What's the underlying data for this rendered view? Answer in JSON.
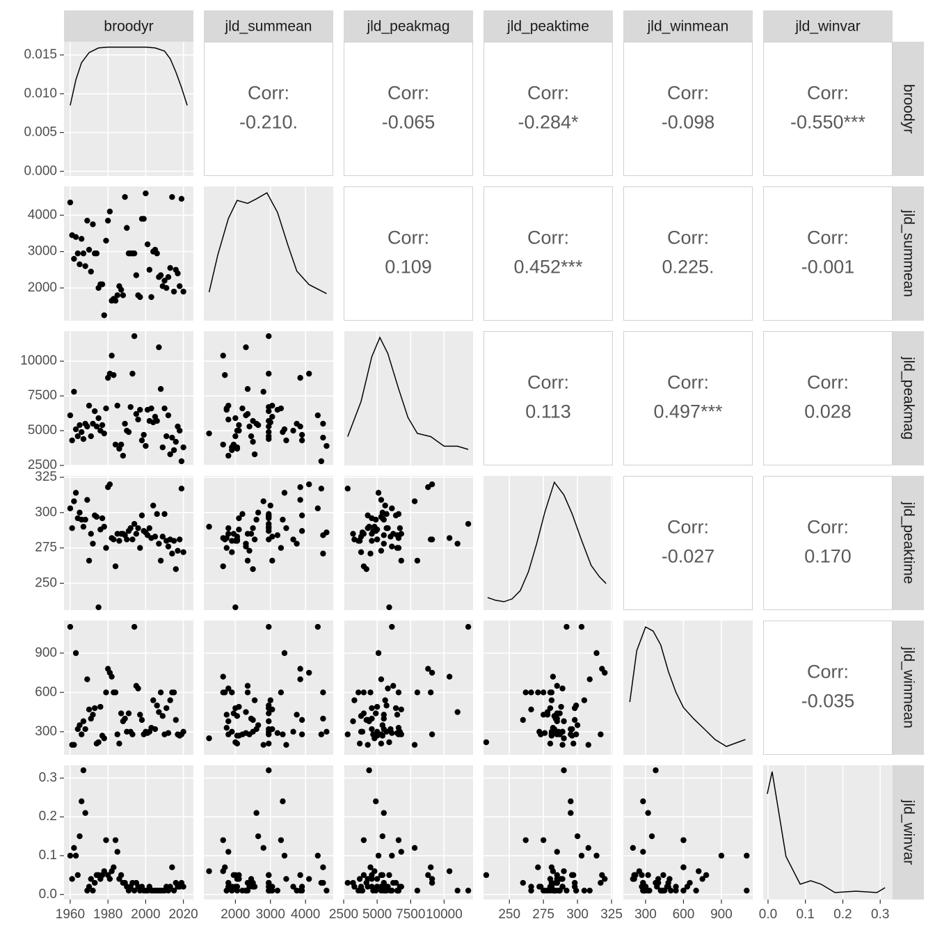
{
  "chart_data": {
    "type": "scatter_matrix",
    "correlation_label": "Corr:",
    "correlations": [
      [
        "-0.210.",
        "-0.065",
        "-0.284*",
        "-0.098",
        "-0.550***"
      ],
      [
        "0.109",
        "0.452***",
        "0.225.",
        "-0.001"
      ],
      [
        "0.113",
        "0.497***",
        "0.028"
      ],
      [
        "-0.027",
        "0.170"
      ],
      [
        "-0.035"
      ]
    ],
    "variables": [
      {
        "name": "broodyr",
        "lim": [
          1956.7,
          2025.3
        ],
        "ticks": [
          1960,
          1980,
          2000,
          2020
        ],
        "values": [
          1960,
          1961,
          1962,
          1963,
          1964,
          1965,
          1966,
          1967,
          1968,
          1969,
          1970,
          1971,
          1972,
          1973,
          1974,
          1975,
          1976,
          1977,
          1978,
          1979,
          1980,
          1981,
          1982,
          1983,
          1984,
          1985,
          1986,
          1987,
          1988,
          1989,
          1990,
          1991,
          1992,
          1993,
          1994,
          1995,
          1996,
          1997,
          1998,
          1999,
          2000,
          2001,
          2002,
          2003,
          2004,
          2005,
          2006,
          2007,
          2008,
          2009,
          2010,
          2011,
          2012,
          2013,
          2014,
          2015,
          2016,
          2017,
          2018,
          2019,
          2020
        ],
        "density": {
          "x": [
            1960,
            1963,
            1966,
            1970,
            1975,
            1980,
            1990,
            2000,
            2005,
            2010,
            2013,
            2016,
            2019,
            2022
          ],
          "y": [
            0.0085,
            0.0118,
            0.014,
            0.0153,
            0.0159,
            0.016,
            0.016,
            0.016,
            0.0159,
            0.0155,
            0.0145,
            0.0128,
            0.0108,
            0.0085
          ],
          "ylim": [
            -0.0006,
            0.0167
          ],
          "yticks": [
            {
              "value": 0,
              "label": "0.000"
            },
            0.005,
            {
              "value": 0.01,
              "label": "0.010"
            },
            0.015
          ]
        }
      },
      {
        "name": "jld_summean",
        "lim": [
          1100,
          4790
        ],
        "ticks": [
          2000,
          3000,
          4000
        ],
        "values": [
          4350,
          3450,
          2800,
          3400,
          2950,
          2650,
          3350,
          2950,
          2600,
          3850,
          3050,
          2450,
          3750,
          2950,
          2950,
          2000,
          2100,
          2100,
          1250,
          3300,
          3850,
          4100,
          1650,
          1700,
          1650,
          1800,
          2050,
          1950,
          1800,
          4500,
          3650,
          2950,
          2950,
          2950,
          2950,
          2350,
          1800,
          1750,
          3900,
          3900,
          4600,
          3200,
          2500,
          1750,
          3000,
          3050,
          2950,
          2300,
          2350,
          2050,
          2200,
          2000,
          2300,
          2550,
          4500,
          1900,
          2500,
          2400,
          2050,
          4450,
          1900
        ],
        "density": {
          "x": [
            1250,
            1500,
            1800,
            2050,
            2350,
            2600,
            2900,
            3200,
            3500,
            3750,
            4100,
            4600
          ],
          "y": [
            9.5e-05,
            0.00022,
            0.00034,
            0.0004,
            0.00039,
            0.000405,
            0.000425,
            0.00036,
            0.00025,
            0.000165,
            0.00012,
            9e-05
          ]
        }
      },
      {
        "name": "jld_peakmag",
        "lim": [
          2500,
          12160
        ],
        "ticks": [
          2500,
          5000,
          7500,
          10000
        ],
        "values": [
          6100,
          4300,
          7800,
          5100,
          4600,
          5400,
          4900,
          4400,
          5500,
          5300,
          6800,
          4600,
          5500,
          6400,
          5300,
          5900,
          5000,
          5400,
          4800,
          6600,
          8800,
          9100,
          10400,
          9000,
          4000,
          6800,
          3700,
          4000,
          3200,
          5500,
          5000,
          4900,
          6700,
          9100,
          11800,
          6200,
          5800,
          6500,
          4300,
          4700,
          3900,
          6500,
          5700,
          6600,
          5600,
          6000,
          5700,
          11000,
          8000,
          3800,
          6600,
          4600,
          6100,
          3300,
          4500,
          3600,
          4200,
          5300,
          5000,
          2800,
          3800
        ],
        "density": {
          "x": [
            2800,
            3800,
            4600,
            5200,
            5800,
            6600,
            7300,
            8000,
            9000,
            10000,
            11000,
            11800
          ],
          "y": [
            4.5e-05,
            0.0001,
            0.00017,
            0.0002,
            0.000175,
            0.00012,
            7.5e-05,
            5e-05,
            4.5e-05,
            3e-05,
            3e-05,
            2.5e-05
          ]
        }
      },
      {
        "name": "jld_peaktime",
        "lim": [
          231,
          326
        ],
        "ticks": [
          250,
          275,
          300,
          325
        ],
        "values": [
          303,
          289,
          308,
          314,
          296,
          300,
          295,
          290,
          295,
          309,
          266,
          285,
          278,
          298,
          297,
          233,
          288,
          296,
          290,
          275,
          318,
          320,
          282,
          281,
          262,
          285,
          280,
          285,
          285,
          284,
          281,
          287,
          289,
          281,
          292,
          285,
          289,
          275,
          298,
          287,
          286,
          284,
          289,
          282,
          305,
          283,
          299,
          278,
          266,
          283,
          299,
          280,
          276,
          281,
          271,
          280,
          260,
          273,
          281,
          317,
          272
        ],
        "density": {
          "x": [
            234,
            240,
            246,
            252,
            258,
            264,
            270,
            276,
            283,
            290,
            296,
            303,
            310,
            316,
            321
          ],
          "y": [
            0.0018,
            0.0014,
            0.0012,
            0.0016,
            0.0028,
            0.0055,
            0.0095,
            0.014,
            0.0183,
            0.0165,
            0.0138,
            0.01,
            0.0064,
            0.0048,
            0.0038
          ]
        }
      },
      {
        "name": "jld_winmean",
        "lim": [
          124,
          1148
        ],
        "ticks": [
          300,
          600,
          900
        ],
        "values": [
          1100,
          200,
          200,
          900,
          320,
          350,
          280,
          380,
          320,
          700,
          470,
          400,
          430,
          480,
          210,
          220,
          490,
          270,
          250,
          600,
          780,
          750,
          720,
          600,
          600,
          280,
          210,
          440,
          380,
          400,
          300,
          440,
          300,
          280,
          1100,
          650,
          630,
          430,
          390,
          280,
          300,
          290,
          300,
          330,
          540,
          320,
          500,
          450,
          600,
          420,
          280,
          480,
          290,
          540,
          600,
          600,
          390,
          280,
          270,
          280,
          300
        ],
        "density": {
          "x": [
            175,
            230,
            300,
            360,
            420,
            480,
            540,
            600,
            680,
            760,
            850,
            940,
            1000,
            1090
          ],
          "y": [
            0.00076,
            0.0015,
            0.00184,
            0.00178,
            0.00158,
            0.0012,
            0.0009,
            0.00068,
            0.00052,
            0.00038,
            0.00022,
            0.00012,
            0.00016,
            0.00022
          ]
        }
      },
      {
        "name": "jld_winvar",
        "lim": [
          -0.013,
          0.333
        ],
        "ticks": [
          {
            "value": 0,
            "label": "0.0"
          },
          0.1,
          0.2,
          0.3
        ],
        "values": [
          0.1,
          0.04,
          0.12,
          0.1,
          0.05,
          0.15,
          0.24,
          0.32,
          0.21,
          0.01,
          0.02,
          0.04,
          0.01,
          0.03,
          0.05,
          0.05,
          0.04,
          0.05,
          0.06,
          0.14,
          0.05,
          0.04,
          0.06,
          0.07,
          0.14,
          0.11,
          0.04,
          0.05,
          0.03,
          0.03,
          0.02,
          0.01,
          0.02,
          0.03,
          0.01,
          0.03,
          0.02,
          0.01,
          0.02,
          0.01,
          0.01,
          0.01,
          0.02,
          0.01,
          0.01,
          0.01,
          0.01,
          0.01,
          0.01,
          0.01,
          0.01,
          0.02,
          0.01,
          0.02,
          0.07,
          0.01,
          0.03,
          0.02,
          0.02,
          0.03,
          0.02
        ],
        "density": {
          "x": [
            -0.002,
            0.011,
            0.048,
            0.086,
            0.114,
            0.142,
            0.179,
            0.235,
            0.291,
            0.313
          ],
          "y": [
            15.2,
            18.4,
            6.2,
            2.2,
            2.7,
            2.2,
            1.0,
            1.2,
            1.0,
            1.7
          ]
        }
      }
    ]
  }
}
